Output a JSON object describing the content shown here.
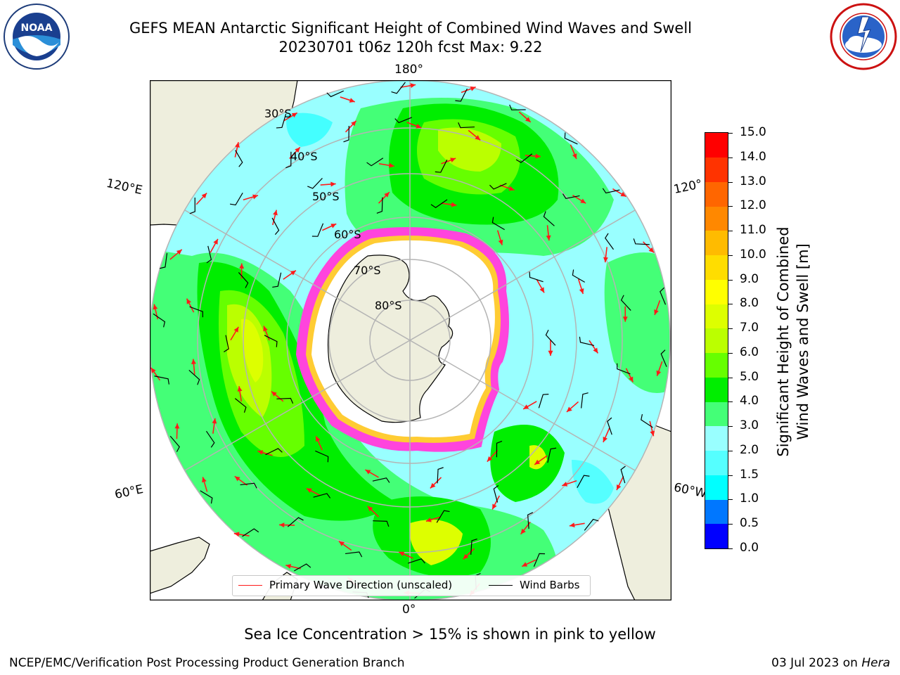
{
  "header": {
    "title_line1": "GEFS MEAN Antarctic Significant Height of Combined Wind Waves and Swell",
    "title_line2": "20230701 t06z 120h fcst   Max: 9.22"
  },
  "logos": {
    "left": {
      "icon": "noaa-logo",
      "text": "NOAA",
      "ring_text": "NATIONAL OCEANIC AND ATMOSPHERIC ADMINISTRATION · U.S. DEPARTMENT OF COMMERCE"
    },
    "right": {
      "icon": "nws-logo",
      "ring_text": "NATIONAL WEATHER SERVICE"
    }
  },
  "map": {
    "projection": "south-polar-stereographic",
    "longitude_labels": {
      "top": "180°",
      "bottom": "0°",
      "upper_left": "120°E",
      "lower_left": "60°E",
      "upper_right": "120°",
      "lower_right": "60°W"
    },
    "latitude_labels": [
      "30°S",
      "40°S",
      "50°S",
      "60°S",
      "70°S",
      "80°S"
    ],
    "colors": {
      "land": "#eeeedd",
      "ice_edge": "#ff44dd",
      "ice_inner": "#ffcc33",
      "graticule": "#b4b4b4",
      "wave_arrow": "#ff1a1a",
      "wind_barb": "#000000"
    }
  },
  "legend": {
    "primary_wave_direction": "Primary Wave Direction (unscaled)",
    "wind_barbs": "Wind Barbs"
  },
  "colorbar": {
    "title_line1": "Significant Height of Combined",
    "title_line2": "Wind Waves and Swell [m]",
    "ticks": [
      "0.0",
      "0.5",
      "1.0",
      "1.5",
      "2.0",
      "3.0",
      "4.0",
      "5.0",
      "6.0",
      "7.0",
      "8.0",
      "9.0",
      "10.0",
      "11.0",
      "12.0",
      "13.0",
      "14.0",
      "15.0"
    ],
    "colors": [
      "#0000ff",
      "#0077ff",
      "#00ffff",
      "#55ffff",
      "#99ffff",
      "#44ff77",
      "#00ee00",
      "#66ff00",
      "#bbff00",
      "#ddff00",
      "#ffff00",
      "#ffdd00",
      "#ffbb00",
      "#ff8800",
      "#ff6600",
      "#ff3300",
      "#ff0000"
    ]
  },
  "caption": "Sea Ice Concentration > 15% is shown in pink to yellow",
  "footer": {
    "left": "NCEP/EMC/Verification Post Processing Product Generation Branch",
    "right_date": "03 Jul 2023 on ",
    "right_host": "Hera"
  }
}
